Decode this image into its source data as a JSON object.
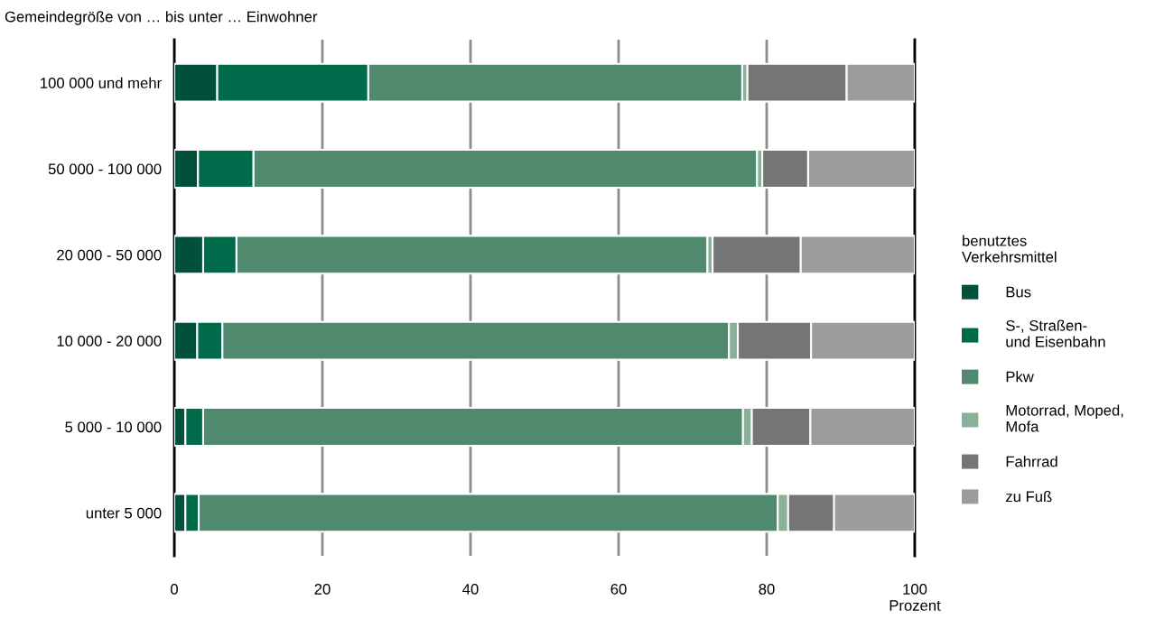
{
  "chart_data": {
    "type": "bar",
    "orientation": "horizontal",
    "stacked": true,
    "title": "Gemeindegröße von … bis unter … Einwohner",
    "xlabel": "Prozent",
    "legend_title": "benutztes\nVerkehrsmittel",
    "categories": [
      "100 000 und mehr",
      "50 000 - 100 000",
      "20 000 - 50 000",
      "10 000 - 20 000",
      "5 000 - 10 000",
      "unter 5 000"
    ],
    "series": [
      {
        "name": "Bus",
        "color": "#00503c",
        "values": [
          5.8,
          3.2,
          3.9,
          3.1,
          1.5,
          1.5
        ]
      },
      {
        "name": "S-, Straßen-\nund Eisenbahn",
        "color": "#006b4b",
        "values": [
          20.4,
          7.5,
          4.5,
          3.4,
          2.4,
          1.8
        ]
      },
      {
        "name": "Pkw",
        "color": "#4f8a6f",
        "values": [
          50.5,
          68.0,
          63.6,
          68.4,
          72.9,
          78.2
        ]
      },
      {
        "name": "Motorrad, Moped,\nMofa",
        "color": "#8ab09a",
        "values": [
          0.7,
          0.7,
          0.7,
          1.2,
          1.2,
          1.4
        ]
      },
      {
        "name": "Fahrrad",
        "color": "#747577",
        "values": [
          13.4,
          6.2,
          11.9,
          9.9,
          7.9,
          6.2
        ]
      },
      {
        "name": "zu Fuß",
        "color": "#9b9c9e",
        "values": [
          9.2,
          14.4,
          15.4,
          14.0,
          14.1,
          10.9
        ]
      }
    ],
    "xlim": [
      0,
      100
    ],
    "xticks": [
      0,
      20,
      40,
      60,
      80,
      100
    ],
    "grid": "x",
    "legend": "right"
  }
}
